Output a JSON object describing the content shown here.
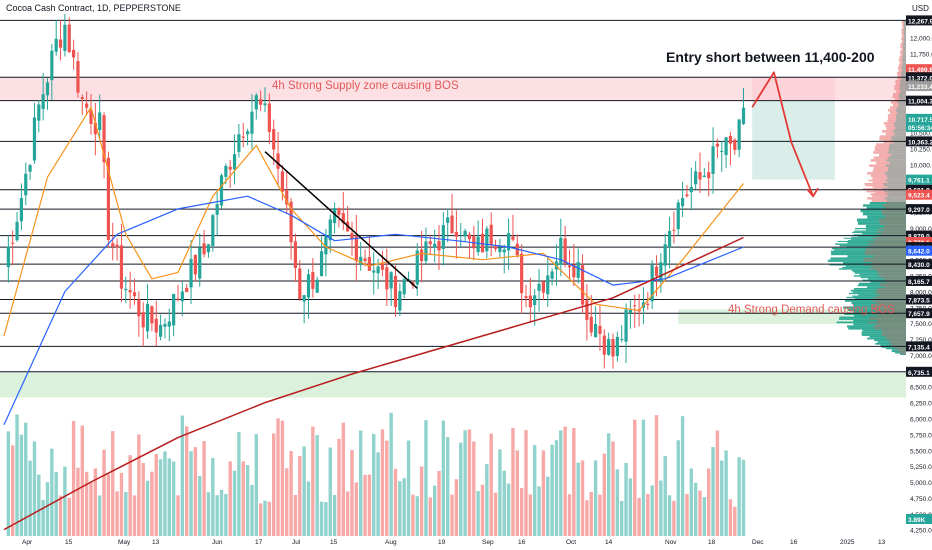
{
  "header": {
    "title": "Cocoa Cash Contract, 1D, PEPPERSTONE",
    "currency": "USD"
  },
  "annotations": {
    "entry_text": "Entry short between 11,400-200",
    "supply_text": "4h Strong Supply zone causing BOS",
    "demand_text": "4h Strong Demand causing BOS"
  },
  "colors": {
    "up": "#26a69a",
    "down": "#ef5350",
    "vol_up": "#8fd3cc",
    "vol_down": "#f7a9a7",
    "ma_fast": "#f7931a",
    "ma_mid": "#2962ff",
    "ma_slow": "#b71c1c",
    "supply_zone": "#fcdde0",
    "demand_zone": "#d7efd8",
    "arrow": "#e53935",
    "trendline": "#000000"
  },
  "chart_data": {
    "type": "candlestick",
    "title": "Cocoa Cash Contract, 1D, PEPPERSTONE",
    "ylim": [
      4150,
      12400
    ],
    "y_ticks": [
      4250,
      4500,
      4750,
      5000,
      5250,
      5500,
      5750,
      6000,
      6250,
      6500,
      6750,
      7000,
      7250,
      7500,
      7750,
      8000,
      8250,
      8500,
      8750,
      9000,
      9250,
      9500,
      9750,
      10000,
      10250,
      10500,
      10750,
      11000,
      11250,
      11500,
      11750,
      12000
    ],
    "x_ticks": [
      "Apr",
      "15",
      "May",
      "13",
      "Jun",
      "17",
      "Jul",
      "15",
      "Aug",
      "19",
      "Sep",
      "16",
      "Oct",
      "14",
      "Nov",
      "18",
      "Dec",
      "16",
      "2025",
      "13"
    ],
    "horizontal_levels": [
      12267.9,
      11372.0,
      11004.3,
      10363.2,
      9601.9,
      9297.0,
      8879.0,
      8698.9,
      8430.0,
      8165.7,
      7873.5,
      7657.9,
      7135.4,
      6735.1
    ],
    "price_tags": [
      {
        "label": "12,267.9",
        "kind": "level"
      },
      {
        "label": "11,499.8",
        "kind": "red"
      },
      {
        "label": "11,372.0",
        "kind": "level"
      },
      {
        "label": "11,233.4",
        "kind": "gray"
      },
      {
        "label": "11,004.3",
        "kind": "level"
      },
      {
        "label": "10,717.5",
        "kind": "green"
      },
      {
        "label": "05:56:34",
        "kind": "green"
      },
      {
        "label": "10,363.2",
        "kind": "level"
      },
      {
        "label": "9,761.1",
        "kind": "green"
      },
      {
        "label": "9,601.9",
        "kind": "level"
      },
      {
        "label": "9,523.4",
        "kind": "red"
      },
      {
        "label": "9,297.0",
        "kind": "level"
      },
      {
        "label": "8,879.0",
        "kind": "level"
      },
      {
        "label": "8,779.1",
        "kind": "red"
      },
      {
        "label": "8,698.9",
        "kind": "level"
      },
      {
        "label": "8,642.0",
        "kind": "blue"
      },
      {
        "label": "8,430.0",
        "kind": "level"
      },
      {
        "label": "8,165.7",
        "kind": "level"
      },
      {
        "label": "7,873.5",
        "kind": "level"
      },
      {
        "label": "7,657.9",
        "kind": "level"
      },
      {
        "label": "7,135.4",
        "kind": "level"
      },
      {
        "label": "6,735.1",
        "kind": "level"
      },
      {
        "label": "3.89K",
        "kind": "green"
      }
    ],
    "zones": [
      {
        "name": "supply",
        "from": 11004.3,
        "to": 11372.0
      },
      {
        "name": "demand",
        "from": 7490,
        "to": 7720
      },
      {
        "name": "lower-demand",
        "from": 6330,
        "to": 6735.1
      }
    ],
    "waypoints": [
      [
        0,
        8400
      ],
      [
        4,
        9500
      ],
      [
        8,
        10900
      ],
      [
        12,
        11900
      ],
      [
        14,
        12200
      ],
      [
        18,
        11000
      ],
      [
        22,
        10600
      ],
      [
        24,
        9000
      ],
      [
        27,
        8200
      ],
      [
        32,
        7600
      ],
      [
        36,
        7450
      ],
      [
        42,
        8200
      ],
      [
        46,
        8600
      ],
      [
        50,
        9700
      ],
      [
        54,
        10500
      ],
      [
        58,
        11000
      ],
      [
        61,
        10600
      ],
      [
        64,
        9600
      ],
      [
        68,
        8000
      ],
      [
        72,
        8300
      ],
      [
        76,
        9100
      ],
      [
        80,
        8800
      ],
      [
        86,
        8300
      ],
      [
        90,
        8000
      ],
      [
        94,
        8300
      ],
      [
        98,
        8700
      ],
      [
        104,
        9100
      ],
      [
        108,
        8600
      ],
      [
        112,
        8900
      ],
      [
        116,
        8900
      ],
      [
        120,
        7900
      ],
      [
        124,
        8200
      ],
      [
        128,
        8700
      ],
      [
        132,
        8400
      ],
      [
        134,
        7600
      ],
      [
        136,
        7500
      ],
      [
        140,
        7000
      ],
      [
        143,
        7500
      ],
      [
        148,
        8000
      ],
      [
        152,
        8900
      ],
      [
        156,
        9500
      ],
      [
        160,
        9750
      ],
      [
        164,
        10200
      ],
      [
        168,
        10250
      ],
      [
        170,
        10700
      ]
    ],
    "moving_averages": [
      {
        "name": "fast",
        "points": [
          [
            0,
            7300
          ],
          [
            10,
            9800
          ],
          [
            20,
            10900
          ],
          [
            28,
            8900
          ],
          [
            34,
            8200
          ],
          [
            40,
            8300
          ],
          [
            48,
            9500
          ],
          [
            58,
            10300
          ],
          [
            66,
            9300
          ],
          [
            74,
            8700
          ],
          [
            84,
            8400
          ],
          [
            96,
            8600
          ],
          [
            110,
            8500
          ],
          [
            124,
            8600
          ],
          [
            136,
            7800
          ],
          [
            146,
            7700
          ],
          [
            156,
            8500
          ],
          [
            170,
            9700
          ]
        ]
      },
      {
        "name": "mid",
        "points": [
          [
            0,
            5900
          ],
          [
            14,
            8000
          ],
          [
            26,
            8900
          ],
          [
            40,
            9300
          ],
          [
            56,
            9500
          ],
          [
            66,
            9200
          ],
          [
            76,
            8800
          ],
          [
            90,
            8900
          ],
          [
            104,
            8800
          ],
          [
            116,
            8700
          ],
          [
            128,
            8500
          ],
          [
            140,
            8100
          ],
          [
            152,
            8200
          ],
          [
            170,
            8700
          ]
        ]
      },
      {
        "name": "slow",
        "points": [
          [
            0,
            4250
          ],
          [
            20,
            5000
          ],
          [
            40,
            5700
          ],
          [
            60,
            6250
          ],
          [
            80,
            6700
          ],
          [
            100,
            7100
          ],
          [
            120,
            7500
          ],
          [
            140,
            7900
          ],
          [
            170,
            8850
          ]
        ]
      }
    ],
    "trendline": [
      [
        60,
        10200
      ],
      [
        95,
        8050
      ]
    ],
    "forecast_arrow": [
      [
        172,
        10900
      ],
      [
        177,
        11450
      ],
      [
        181,
        10350
      ],
      [
        186,
        9500
      ]
    ],
    "volume_profile": [
      [
        7000,
        0.1
      ],
      [
        7135,
        0.35
      ],
      [
        7300,
        0.55
      ],
      [
        7500,
        0.9
      ],
      [
        7657,
        0.8
      ],
      [
        7873,
        0.75
      ],
      [
        8000,
        0.7
      ],
      [
        8165,
        0.55
      ],
      [
        8300,
        0.75
      ],
      [
        8430,
        1.0
      ],
      [
        8642,
        0.95
      ],
      [
        8779,
        0.85
      ],
      [
        8879,
        0.7
      ],
      [
        9000,
        0.65
      ],
      [
        9297,
        0.55
      ],
      [
        9523,
        0.45
      ],
      [
        9601,
        0.55
      ],
      [
        9761,
        0.5
      ],
      [
        10000,
        0.45
      ],
      [
        10250,
        0.4
      ],
      [
        10500,
        0.3
      ],
      [
        10750,
        0.25
      ],
      [
        11000,
        0.18
      ],
      [
        11250,
        0.14
      ],
      [
        11500,
        0.1
      ],
      [
        11750,
        0.08
      ],
      [
        12000,
        0.06
      ],
      [
        12267,
        0.05
      ]
    ],
    "volume_ylim": [
      0,
      10000
    ]
  }
}
